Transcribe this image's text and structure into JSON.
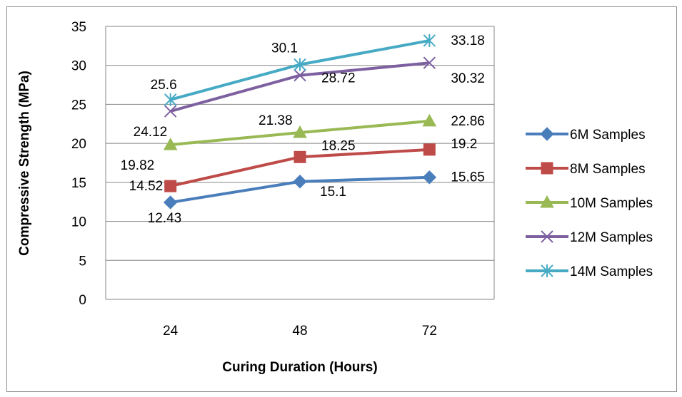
{
  "chart_data": {
    "type": "line",
    "title": "",
    "xlabel": "Curing Duration (Hours)",
    "ylabel": "Compressive Strength (MPa)",
    "categories": [
      "24",
      "48",
      "72"
    ],
    "ylim": [
      0,
      35
    ],
    "yticks": [
      "0",
      "5",
      "10",
      "15",
      "20",
      "25",
      "30",
      "35"
    ],
    "grid": "horizontal",
    "legend": "right",
    "series": [
      {
        "name": "6M Samples",
        "values": [
          12.43,
          15.1,
          15.65
        ],
        "labels": [
          "12.43",
          "15.1",
          "15.65"
        ],
        "color": "#4a7ebb",
        "marker": "diamond"
      },
      {
        "name": "8M Samples",
        "values": [
          14.52,
          18.25,
          19.2
        ],
        "labels": [
          "14.52",
          "18.25",
          "19.2"
        ],
        "color": "#be4b48",
        "marker": "square"
      },
      {
        "name": "10M Samples",
        "values": [
          19.82,
          21.38,
          22.86
        ],
        "labels": [
          "19.82",
          "21.38",
          "22.86"
        ],
        "color": "#98b954",
        "marker": "triangle"
      },
      {
        "name": "12M Samples",
        "values": [
          24.12,
          28.72,
          30.32
        ],
        "labels": [
          "24.12",
          "28.72",
          "30.32"
        ],
        "color": "#7d60a0",
        "marker": "x"
      },
      {
        "name": "14M Samples",
        "values": [
          25.6,
          30.1,
          33.18
        ],
        "labels": [
          "25.6",
          "30.1",
          "33.18"
        ],
        "color": "#46aac5",
        "marker": "star"
      }
    ]
  }
}
